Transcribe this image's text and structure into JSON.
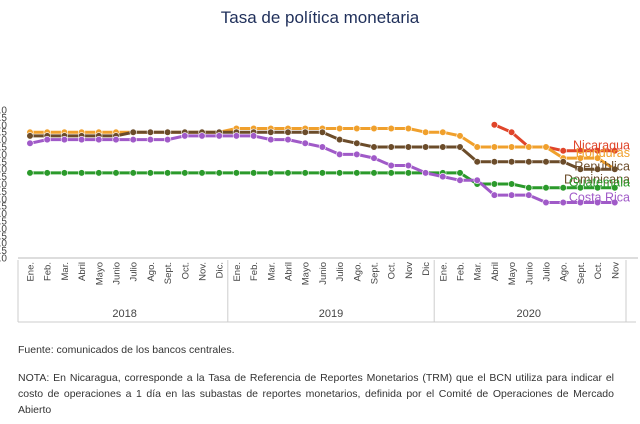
{
  "chart_data": {
    "type": "line",
    "title": "Tasa de política monetaria",
    "xlabel": "",
    "ylabel": "",
    "ylim": [
      0.0,
      10.0
    ],
    "y_ticks": [
      "0.0",
      "0.5",
      "1.0",
      "1.5",
      "2.0",
      "2.5",
      "3.0",
      "3.5",
      "4.0",
      "4.5",
      "5.0",
      "5.5",
      "6.0",
      "6.5",
      "7.0",
      "7.5",
      "8.0",
      "8.5",
      "9.0",
      "9.5",
      "10.0"
    ],
    "month_labels": [
      "Ene.",
      "Feb.",
      "Mar.",
      "Abril",
      "Mayo",
      "Junio",
      "Julio",
      "Ago.",
      "Sept.",
      "Oct.",
      "Nov.",
      "Dic.",
      "Ene.",
      "Feb.",
      "Mar.",
      "Abril",
      "Mayo",
      "Junio",
      "Julio",
      "Ago.",
      "Sept.",
      "Oct.",
      "Nov",
      "Dic",
      "Ene.",
      "Feb.",
      "Mar.",
      "Abril",
      "Mayo",
      "Junio",
      "Julio",
      "Ago.",
      "Sept.",
      "Oct.",
      "Nov"
    ],
    "years": [
      {
        "label": "2018",
        "start": 0,
        "end": 11
      },
      {
        "label": "2019",
        "start": 12,
        "end": 23
      },
      {
        "label": "2020",
        "start": 24,
        "end": 34
      }
    ],
    "grid": false,
    "legend_placement": "inline-right",
    "series": [
      {
        "name": "Nicaragua",
        "color": "#e0452a",
        "start": 27,
        "values": [
          9.0,
          8.5,
          7.5,
          7.5,
          7.25,
          7.25,
          7.25,
          7.25
        ]
      },
      {
        "name": "Honduras",
        "color": "#f0a02c",
        "start": 0,
        "values": [
          8.5,
          8.5,
          8.5,
          8.5,
          8.5,
          8.5,
          8.5,
          8.5,
          8.5,
          8.5,
          8.5,
          8.5,
          8.75,
          8.75,
          8.75,
          8.75,
          8.75,
          8.75,
          8.75,
          8.75,
          8.75,
          8.75,
          8.75,
          8.5,
          8.5,
          8.25,
          7.5,
          7.5,
          7.5,
          7.5,
          7.5,
          6.75,
          6.75,
          6.75,
          6.0
        ]
      },
      {
        "name": "República Dominicana",
        "color": "#6b4c2a",
        "start": 0,
        "values": [
          8.25,
          8.25,
          8.25,
          8.25,
          8.25,
          8.25,
          8.5,
          8.5,
          8.5,
          8.5,
          8.5,
          8.5,
          8.5,
          8.5,
          8.5,
          8.5,
          8.5,
          8.5,
          8.0,
          7.75,
          7.5,
          7.5,
          7.5,
          7.5,
          7.5,
          7.5,
          6.5,
          6.5,
          6.5,
          6.5,
          6.5,
          6.5,
          6.0,
          6.0,
          6.0
        ]
      },
      {
        "name": "Guatemala",
        "color": "#2b9a2b",
        "start": 0,
        "values": [
          5.75,
          5.75,
          5.75,
          5.75,
          5.75,
          5.75,
          5.75,
          5.75,
          5.75,
          5.75,
          5.75,
          5.75,
          5.75,
          5.75,
          5.75,
          5.75,
          5.75,
          5.75,
          5.75,
          5.75,
          5.75,
          5.75,
          5.75,
          5.75,
          5.75,
          5.75,
          5.0,
          5.0,
          5.0,
          4.75,
          4.75,
          4.75,
          4.75,
          4.75,
          4.75
        ]
      },
      {
        "name": "Costa Rica",
        "color": "#a05ac8",
        "start": 0,
        "values": [
          7.75,
          8.0,
          8.0,
          8.0,
          8.0,
          8.0,
          8.0,
          8.0,
          8.0,
          8.25,
          8.25,
          8.25,
          8.25,
          8.25,
          8.0,
          8.0,
          7.75,
          7.5,
          7.0,
          7.0,
          6.75,
          6.25,
          6.25,
          5.75,
          5.5,
          5.25,
          5.25,
          4.25,
          4.25,
          4.25,
          3.75,
          3.75,
          3.75,
          3.75,
          3.75
        ]
      }
    ],
    "legend_labels": [
      {
        "text": "Nicaragua",
        "color": "#e0452a",
        "y": 7.6
      },
      {
        "text": "Honduras",
        "color": "#f0a02c",
        "y": 7.1
      },
      {
        "text": "República",
        "color": "#6b4c2a",
        "y": 6.18
      },
      {
        "text": "Dominicana",
        "color": "#6b4c2a",
        "y": 5.3
      },
      {
        "text": "Guatemala",
        "color": "#2b9a2b",
        "y": 5.1
      },
      {
        "text": "Costa Rica",
        "color": "#a05ac8",
        "y": 4.1
      }
    ]
  },
  "notes": {
    "source": "Fuente: comunicados de los bancos centrales.",
    "footnote": "NOTA: En Nicaragua, corresponde a la Tasa de Referencia de Reportes Monetarios (TRM) que el BCN utiliza para indicar el costo de operaciones a 1 día en las subastas de reportes monetarios, definida por el Comité de Operaciones de Mercado Abierto"
  }
}
